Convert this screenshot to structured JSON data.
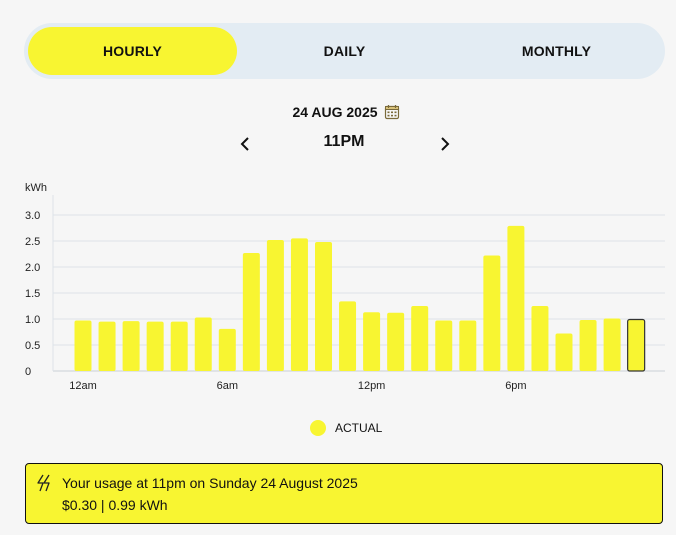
{
  "tabs": [
    {
      "label": "HOURLY",
      "active": true
    },
    {
      "label": "DAILY",
      "active": false
    },
    {
      "label": "MONTHLY",
      "active": false
    }
  ],
  "date_nav": {
    "date": "24 AUG 2025",
    "hour": "11PM",
    "calendar_icon": "calendar-icon",
    "prev_icon": "chevron-left-icon",
    "next_icon": "chevron-right-icon"
  },
  "legend": {
    "label": "ACTUAL"
  },
  "usage": {
    "icon": "lightning-icon",
    "line1": "Your usage at 11pm on Sunday 24 August 2025",
    "line2": "$0.30 | 0.99 kWh"
  },
  "colors": {
    "accent": "#f8f531",
    "tab_bar": "#e3ecf3",
    "grid": "#dde3e8"
  },
  "chart_data": {
    "type": "bar",
    "ylabel": "kWh",
    "ylim": [
      0,
      3.0
    ],
    "yticks": [
      "0",
      "0.5",
      "1.0",
      "1.5",
      "2.0",
      "2.5",
      "3.0"
    ],
    "xtick_labels": [
      {
        "index": 0,
        "label": "12am"
      },
      {
        "index": 6,
        "label": "6am"
      },
      {
        "index": 12,
        "label": "12pm"
      },
      {
        "index": 18,
        "label": "6pm"
      }
    ],
    "categories": [
      "12am",
      "1am",
      "2am",
      "3am",
      "4am",
      "5am",
      "6am",
      "7am",
      "8am",
      "9am",
      "10am",
      "11am",
      "12pm",
      "1pm",
      "2pm",
      "3pm",
      "4pm",
      "5pm",
      "6pm",
      "7pm",
      "8pm",
      "9pm",
      "10pm",
      "11pm"
    ],
    "values": [
      0.97,
      0.95,
      0.96,
      0.95,
      0.95,
      1.03,
      0.81,
      2.27,
      2.52,
      2.55,
      2.48,
      1.34,
      1.13,
      1.12,
      1.25,
      0.97,
      0.97,
      2.22,
      2.79,
      1.25,
      0.72,
      0.98,
      1.01,
      0.99
    ],
    "selected_index": 23,
    "grid": true
  }
}
